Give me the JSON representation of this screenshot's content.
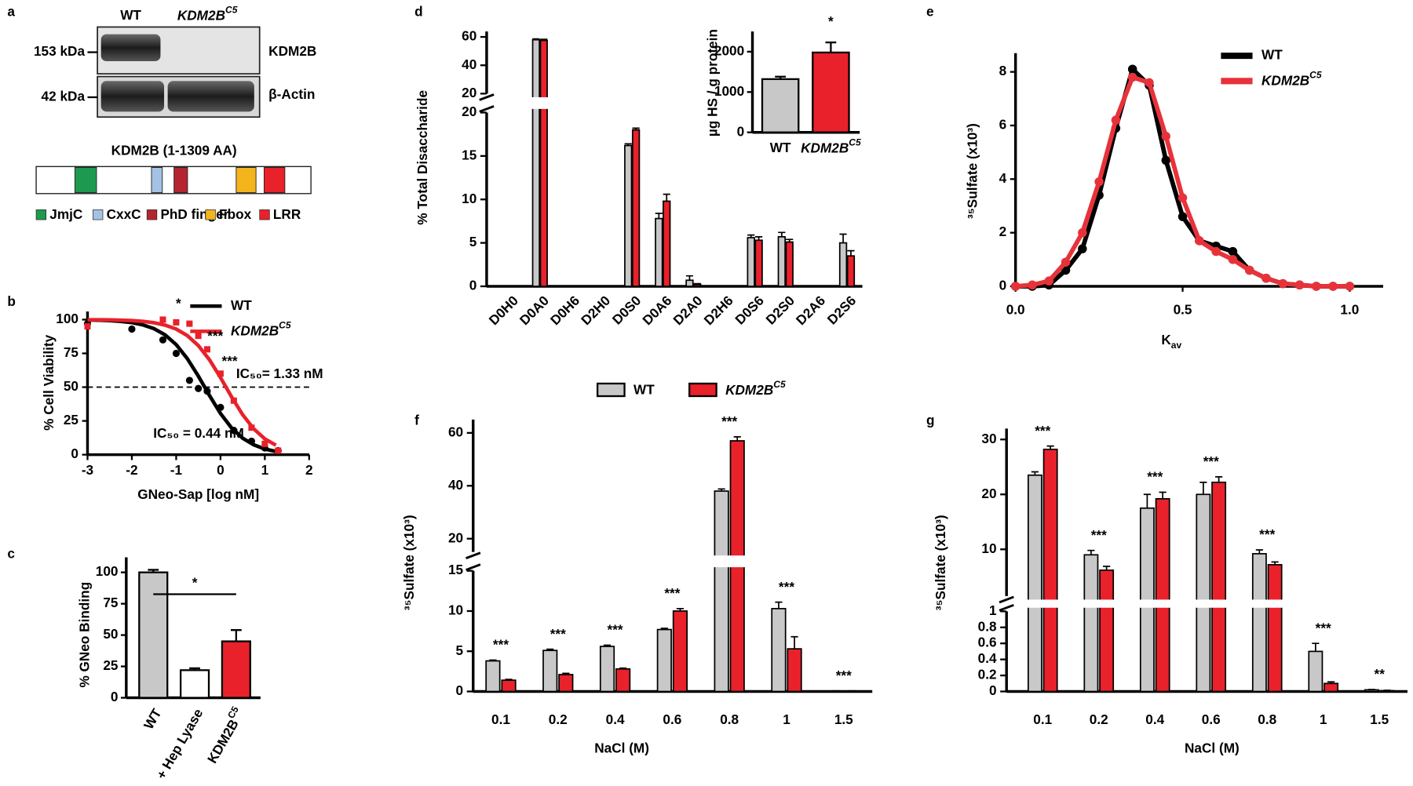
{
  "panel_labels": [
    "a",
    "b",
    "c",
    "d",
    "e",
    "f",
    "g"
  ],
  "blot": {
    "lanes": [
      "WT",
      {
        "text": "KDM2B",
        "sup": "C5"
      }
    ],
    "markers": [
      "153 kDa",
      "42 kDa"
    ],
    "proteins": [
      "KDM2B",
      "β-Actin"
    ]
  },
  "domains": {
    "title": "KDM2B (1-1309 AA)",
    "items": [
      {
        "name": "JmjC",
        "color": "#1e9a50"
      },
      {
        "name": "CxxC",
        "color": "#a4c2e4"
      },
      {
        "name": "PhD finger",
        "color": "#b52530"
      },
      {
        "name": "Fbox",
        "color": "#f4b41c"
      },
      {
        "name": "LRR",
        "color": "#e8212a"
      }
    ]
  },
  "legend": {
    "items": [
      {
        "name": "WT",
        "color": "#c8c8c8"
      },
      {
        "name": {
          "text": "KDM2B",
          "sup": "C5"
        },
        "color": "#e8212a"
      }
    ]
  },
  "chart_data": [
    {
      "type": "line",
      "xlabel": "GNeo-Sap [log nM]",
      "ylabel": "% Cell Viability",
      "xlim": [
        -3,
        2
      ],
      "xticks": [
        -3,
        -2,
        -1,
        0,
        1,
        2
      ],
      "ylim": [
        0,
        106
      ],
      "yticks": [
        0,
        25,
        50,
        75,
        100
      ],
      "hline": 50,
      "fit_x": [
        -3,
        -2.75,
        -2.5,
        -2.25,
        -2,
        -1.75,
        -1.5,
        -1.25,
        -1,
        -0.75,
        -0.5,
        -0.25,
        0,
        0.25,
        0.5,
        0.75,
        1,
        1.25
      ],
      "series": [
        {
          "name": "WT",
          "color": "#000000",
          "x": [
            -3,
            -2,
            -1.3,
            -1,
            -0.7,
            -0.5,
            -0.3,
            0,
            0.3,
            0.7,
            1,
            1.3
          ],
          "values": [
            97,
            93,
            85,
            75,
            55,
            49,
            47,
            35,
            18,
            10,
            5,
            3
          ],
          "fit": [
            99.8,
            99.6,
            99.3,
            98.7,
            97.8,
            96.1,
            93.3,
            88.7,
            81.5,
            71.2,
            58.2,
            43.9,
            30.5,
            19.8,
            12.2,
            7.3,
            4.2,
            2.4
          ]
        },
        {
          "name": {
            "text": "KDM2B",
            "sup": "C5"
          },
          "color": "#e8212a",
          "marker": "square",
          "x": [
            -3,
            -1.3,
            -1,
            -0.7,
            -0.5,
            -0.3,
            0,
            0.3,
            0.7,
            1,
            1.3
          ],
          "values": [
            95,
            100,
            98,
            97,
            88,
            78,
            60,
            40,
            20,
            8,
            3
          ],
          "fit": [
            99.9,
            99.9,
            99.8,
            99.6,
            99.3,
            98.7,
            97.7,
            95.9,
            93.0,
            88.2,
            80.8,
            70.3,
            57.1,
            42.8,
            29.6,
            19.1,
            11.7,
            7.0
          ]
        }
      ],
      "annotations": [
        {
          "text": "*",
          "color": "#000000"
        },
        {
          "text": "***",
          "color": "#000000"
        },
        {
          "text": "***",
          "color": "#000000"
        },
        {
          "text": "IC₅₀= 1.33 nM",
          "color": "#e8212a"
        },
        {
          "text": "IC₅₀ = 0.44 nM",
          "color": "#000000"
        }
      ]
    },
    {
      "type": "bar",
      "ylabel": "% GNeo Binding",
      "categories": [
        "WT",
        "+ Hep Lyase",
        {
          "text": "KDM2B",
          "sup": "C5"
        }
      ],
      "values": [
        100,
        22,
        45
      ],
      "errors": [
        2,
        1.5,
        9
      ],
      "colors": [
        "#c8c8c8",
        "#ffffff",
        "#e8212a"
      ],
      "ylim": [
        0,
        112
      ],
      "yticks": [
        0,
        25,
        50,
        75,
        100
      ],
      "significance": "*"
    },
    {
      "type": "grouped_bar",
      "ylabel": "% Total Disaccharide",
      "categories": [
        "D0H0",
        "D0A0",
        "D0H6",
        "D2H0",
        "D0S0",
        "D0A6",
        "D2A0",
        "D2H6",
        "D0S6",
        "D2S0",
        "D2A6",
        "D2S6"
      ],
      "segments": [
        {
          "ylim": [
            0,
            20
          ],
          "yticks": [
            0,
            5,
            10,
            15,
            20
          ]
        },
        {
          "ylim": [
            20,
            60
          ],
          "yticks": [
            20,
            40,
            60
          ]
        }
      ],
      "series": [
        {
          "name": "WT",
          "color": "#c8c8c8",
          "values": [
            0,
            58,
            0,
            0,
            16.2,
            7.8,
            0.7,
            0,
            5.6,
            5.7,
            0,
            5
          ],
          "errors": [
            0,
            0.6,
            0,
            0,
            0.2,
            0.6,
            0.5,
            0,
            0.3,
            0.5,
            0,
            1.0
          ]
        },
        {
          "name": {
            "text": "KDM2B",
            "sup": "C5"
          },
          "color": "#e8212a",
          "values": [
            0,
            57.5,
            0,
            0,
            18,
            9.8,
            0.2,
            0,
            5.3,
            5.1,
            0,
            3.5
          ],
          "errors": [
            0,
            0.8,
            0,
            0,
            0.2,
            0.8,
            0.1,
            0,
            0.4,
            0.3,
            0,
            0.6
          ]
        }
      ]
    },
    {
      "type": "bar",
      "ylabel": "µg HS / g protein",
      "categories": [
        "WT",
        {
          "text": "KDM2B",
          "sup": "C5"
        }
      ],
      "values": [
        1320,
        1980
      ],
      "errors": [
        60,
        250
      ],
      "colors": [
        "#c8c8c8",
        "#e8212a"
      ],
      "ylim": [
        0,
        2500
      ],
      "yticks": [
        0,
        1000,
        2000
      ],
      "significance": "*"
    },
    {
      "type": "line",
      "xlabel": {
        "text": "K",
        "sub": "av"
      },
      "ylabel": "³⁵Sulfate (x10³)",
      "xlim": [
        0,
        1.1
      ],
      "xticks": [
        {
          "value": 0,
          "label": "0.0"
        },
        0.5,
        {
          "value": 1,
          "label": "1.0"
        }
      ],
      "ylim": [
        0,
        8.7
      ],
      "yticks": [
        0,
        2,
        4,
        6,
        8
      ],
      "x": [
        0,
        0.05,
        0.1,
        0.15,
        0.2,
        0.25,
        0.3,
        0.35,
        0.4,
        0.45,
        0.5,
        0.55,
        0.6,
        0.65,
        0.7,
        0.75,
        0.8,
        0.85,
        0.9,
        0.95,
        1.0
      ],
      "series": [
        {
          "name": "WT",
          "color": "#000000",
          "values": [
            0,
            0,
            0.05,
            0.6,
            1.4,
            3.4,
            5.9,
            8.1,
            7.5,
            4.7,
            2.6,
            1.7,
            1.5,
            1.3,
            0.6,
            0.3,
            0.1,
            0.05,
            0,
            0,
            0
          ]
        },
        {
          "name": {
            "text": "KDM2B",
            "sup": "C5"
          },
          "color": "#e8323a",
          "values": [
            0,
            0.05,
            0.2,
            0.9,
            2.0,
            3.9,
            6.2,
            7.8,
            7.6,
            5.6,
            3.3,
            1.7,
            1.3,
            1.0,
            0.6,
            0.3,
            0.1,
            0.05,
            0,
            0,
            0
          ]
        }
      ]
    },
    {
      "type": "grouped_bar",
      "ylabel": "³⁵Sulfate (x10³)",
      "xlabel": "NaCl (M)",
      "categories": [
        "0.1",
        "0.2",
        "0.4",
        "0.6",
        "0.8",
        "1",
        "1.5"
      ],
      "segments": [
        {
          "ylim": [
            0,
            15
          ],
          "yticks": [
            0,
            5,
            10,
            15
          ]
        },
        {
          "ylim": [
            15,
            63
          ],
          "yticks": [
            20,
            40,
            60
          ]
        }
      ],
      "series": [
        {
          "name": "WT",
          "color": "#c8c8c8",
          "values": [
            3.8,
            5.1,
            5.6,
            7.7,
            38,
            10.3,
            0.05
          ],
          "errors": [
            0.1,
            0.15,
            0.15,
            0.15,
            0.8,
            0.8,
            0.02
          ]
        },
        {
          "name": {
            "text": "KDM2B",
            "sup": "C5"
          },
          "color": "#e8212a",
          "values": [
            1.4,
            2.1,
            2.8,
            10,
            57,
            5.3,
            0.05
          ],
          "errors": [
            0.1,
            0.15,
            0.1,
            0.3,
            1.5,
            1.5,
            0.02
          ]
        }
      ],
      "stars": [
        "***",
        "***",
        "***",
        "***",
        "***",
        "***",
        "***"
      ]
    },
    {
      "type": "grouped_bar",
      "ylabel": "³⁵Sulfate (x10³)",
      "xlabel": "NaCl (M)",
      "categories": [
        "0.1",
        "0.2",
        "0.4",
        "0.6",
        "0.8",
        "1",
        "1.5"
      ],
      "segments": [
        {
          "ylim": [
            0,
            1
          ],
          "yticks": [
            0,
            0.2,
            0.4,
            0.6,
            0.8,
            1
          ]
        },
        {
          "ylim": [
            1.5,
            31
          ],
          "yticks": [
            10,
            20,
            30
          ]
        }
      ],
      "series": [
        {
          "name": "WT",
          "color": "#c8c8c8",
          "values": [
            23.5,
            9,
            17.5,
            20,
            9.2,
            0.5,
            0.02
          ],
          "errors": [
            0.6,
            0.8,
            2.5,
            2.2,
            0.7,
            0.1,
            0.005
          ]
        },
        {
          "name": {
            "text": "KDM2B",
            "sup": "C5"
          },
          "color": "#e8212a",
          "values": [
            28.2,
            6.2,
            19.2,
            22.2,
            7.2,
            0.1,
            0.01
          ],
          "errors": [
            0.6,
            0.7,
            1.2,
            1.0,
            0.5,
            0.02,
            0.005
          ]
        }
      ],
      "stars": [
        "***",
        "***",
        "***",
        "***",
        "***",
        "***",
        "**"
      ]
    }
  ]
}
